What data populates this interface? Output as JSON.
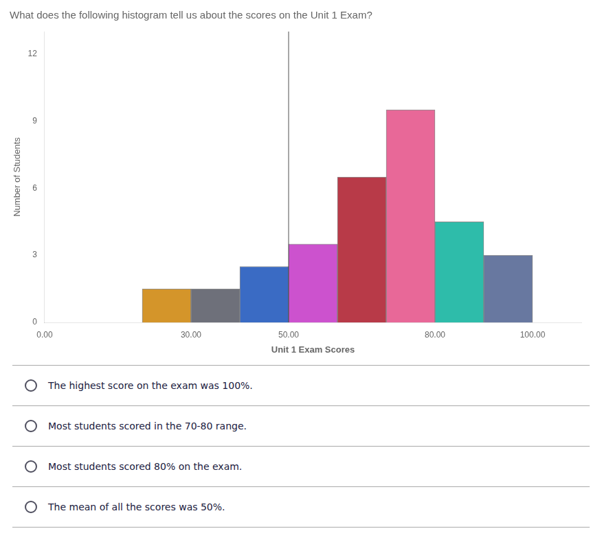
{
  "chart_data": {
    "type": "histogram",
    "title": "What does the following histogram tell us about the scores on the Unit 1 Exam?",
    "xlabel": "Unit 1 Exam Scores",
    "ylabel": "Number of Students",
    "bins": [
      20,
      30,
      40,
      50,
      60,
      70,
      80,
      90,
      100
    ],
    "values": [
      1.5,
      1.5,
      2.5,
      3.5,
      6.5,
      9.5,
      4.5,
      3.0
    ],
    "colors": [
      "#D4952A",
      "#6E707A",
      "#3A6BC4",
      "#CC52CE",
      "#B83A48",
      "#E86898",
      "#2EBCAA",
      "#6878A0"
    ],
    "xlim": [
      0,
      110
    ],
    "xticks": [
      {
        "value": 0,
        "label": "0.00"
      },
      {
        "value": 30,
        "label": "30.00"
      },
      {
        "value": 50,
        "label": "50.00"
      },
      {
        "value": 80,
        "label": "80.00"
      },
      {
        "value": 100,
        "label": "100.00"
      }
    ],
    "ylim": [
      0,
      13
    ],
    "yticks": [
      0,
      3,
      6,
      9,
      12
    ],
    "grid": false,
    "vlines": [
      50
    ],
    "annotations": [
      "The highest score on the exam was 100%.",
      "Most students scored in the 70-80 range.",
      "Most students scored 80% on the exam.",
      "The mean of all the scores was 50%."
    ]
  }
}
